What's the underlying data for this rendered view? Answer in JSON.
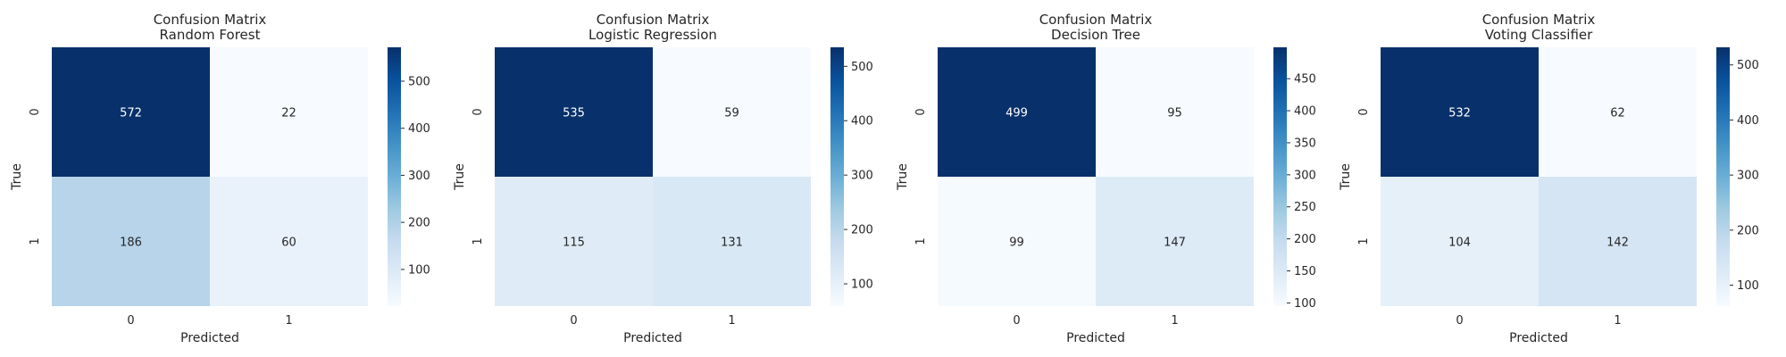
{
  "chart_data": [
    {
      "type": "heatmap",
      "title": "Confusion Matrix\nRandom Forest",
      "xlabel": "Predicted",
      "ylabel": "True",
      "x_categories": [
        "0",
        "1"
      ],
      "y_categories": [
        "0",
        "1"
      ],
      "values": [
        [
          572,
          22
        ],
        [
          186,
          60
        ]
      ],
      "colorbar_ticks": [
        100,
        200,
        300,
        400,
        500
      ],
      "colormap": "Blues",
      "legend": "colorbar-right",
      "grid": false
    },
    {
      "type": "heatmap",
      "title": "Confusion Matrix\nLogistic Regression",
      "xlabel": "Predicted",
      "ylabel": "True",
      "x_categories": [
        "0",
        "1"
      ],
      "y_categories": [
        "0",
        "1"
      ],
      "values": [
        [
          535,
          59
        ],
        [
          115,
          131
        ]
      ],
      "colorbar_ticks": [
        100,
        200,
        300,
        400,
        500
      ],
      "colormap": "Blues",
      "legend": "colorbar-right",
      "grid": false
    },
    {
      "type": "heatmap",
      "title": "Confusion Matrix\nDecision Tree",
      "xlabel": "Predicted",
      "ylabel": "True",
      "x_categories": [
        "0",
        "1"
      ],
      "y_categories": [
        "0",
        "1"
      ],
      "values": [
        [
          499,
          95
        ],
        [
          99,
          147
        ]
      ],
      "colorbar_ticks": [
        100,
        150,
        200,
        250,
        300,
        350,
        400,
        450
      ],
      "colormap": "Blues",
      "legend": "colorbar-right",
      "grid": false
    },
    {
      "type": "heatmap",
      "title": "Confusion Matrix\nVoting Classifier",
      "xlabel": "Predicted",
      "ylabel": "True",
      "x_categories": [
        "0",
        "1"
      ],
      "y_categories": [
        "0",
        "1"
      ],
      "values": [
        [
          532,
          62
        ],
        [
          104,
          142
        ]
      ],
      "colorbar_ticks": [
        100,
        200,
        300,
        400,
        500
      ],
      "colormap": "Blues",
      "legend": "colorbar-right",
      "grid": false
    }
  ]
}
